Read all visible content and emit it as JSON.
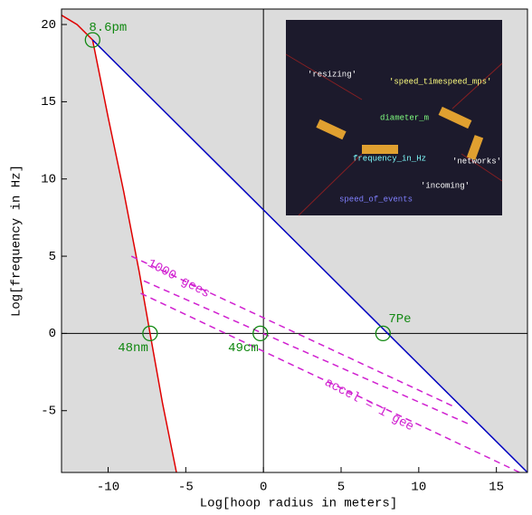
{
  "chart_data": {
    "type": "line",
    "xlabel": "Log[hoop radius in meters]",
    "ylabel": "Log[frequency in Hz]",
    "xlim": [
      -13,
      17
    ],
    "ylim": [
      -9,
      21
    ],
    "xticks": [
      -10,
      -5,
      0,
      5,
      10,
      15
    ],
    "yticks": [
      -5,
      0,
      5,
      10,
      15,
      20
    ],
    "series": [
      {
        "color": "#e00000",
        "x": [
          -13,
          -12,
          -11,
          -10,
          -9,
          -8,
          -7.3,
          -6.5,
          -5.6
        ],
        "values": [
          20.6,
          20,
          19,
          14,
          9.2,
          4,
          0,
          -4.5,
          -9
        ]
      },
      {
        "color": "#0000c0",
        "x": [
          -11,
          17
        ],
        "values": [
          19,
          -9
        ]
      },
      {
        "color": "#d020d0",
        "dashed": true,
        "x": [
          -8.5,
          12.4
        ],
        "values": [
          5,
          -4.8
        ]
      },
      {
        "color": "#d020d0",
        "dashed": true,
        "x": [
          -7.7,
          13.3
        ],
        "values": [
          3.4,
          -5.9
        ]
      },
      {
        "color": "#d020d0",
        "dashed": true,
        "x": [
          -7.9,
          16.5
        ],
        "values": [
          2.6,
          -9
        ]
      }
    ],
    "markers": [
      {
        "label": "8.6pm",
        "x": -11,
        "y": 19
      },
      {
        "label": "48nm",
        "x": -7.3,
        "y": 0
      },
      {
        "label": "49cm",
        "x": -0.2,
        "y": 0
      },
      {
        "label": "7Pe",
        "x": 7.7,
        "y": 0
      }
    ],
    "annotations": [
      {
        "text": "1000 gees",
        "x": -7.4,
        "y": 4.6
      },
      {
        "text": "accel = 1 gee",
        "x": 4,
        "y": -3.1
      }
    ],
    "inset_labels": [
      "'resizing'",
      "'speed_timespeed_mps'",
      "diameter_m",
      "frequency_in_Hz",
      "'networks'",
      "'incoming'",
      "speed_of_events"
    ]
  }
}
